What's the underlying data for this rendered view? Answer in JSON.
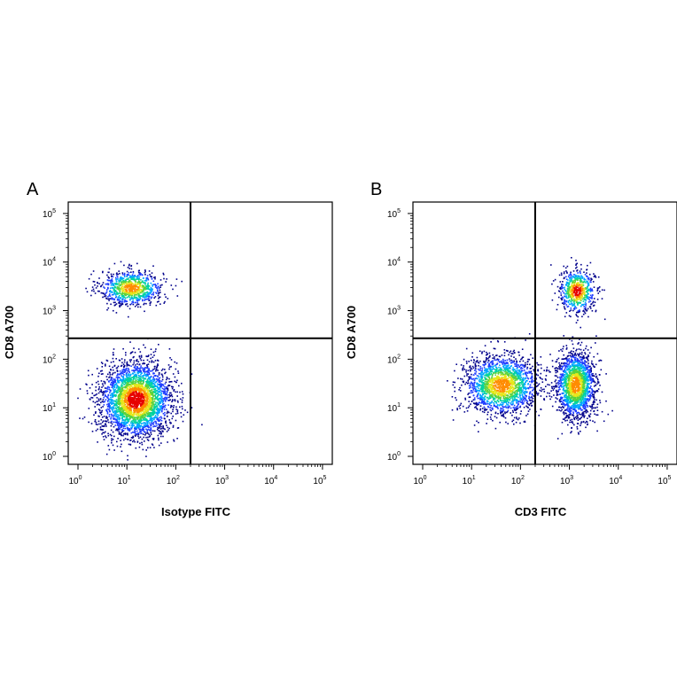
{
  "chart_data": [
    {
      "type": "scatter",
      "panel_label": "A",
      "xlabel": "Isotype FITC",
      "ylabel": "CD8 A700",
      "x_scale": "log",
      "y_scale": "log",
      "xlim": [
        1,
        100000
      ],
      "ylim": [
        1,
        100000
      ],
      "tick_labels": [
        "10^0",
        "10^1",
        "10^2",
        "10^3",
        "10^4",
        "10^5"
      ],
      "quadrant_gate": {
        "x": 200,
        "y": 270
      },
      "populations": [
        {
          "center_x": 12,
          "center_y": 3000,
          "approx_events": 900,
          "density": "high"
        },
        {
          "center_x": 15,
          "center_y": 15,
          "approx_events": 3200,
          "density": "highest"
        }
      ]
    },
    {
      "type": "scatter",
      "panel_label": "B",
      "xlabel": "CD3 FITC",
      "ylabel": "CD8 A700",
      "x_scale": "log",
      "y_scale": "log",
      "xlim": [
        1,
        100000
      ],
      "ylim": [
        1,
        100000
      ],
      "tick_labels": [
        "10^0",
        "10^1",
        "10^2",
        "10^3",
        "10^4",
        "10^5"
      ],
      "quadrant_gate": {
        "x": 200,
        "y": 270
      },
      "populations": [
        {
          "center_x": 1400,
          "center_y": 2600,
          "approx_events": 650,
          "density": "highest"
        },
        {
          "center_x": 40,
          "center_y": 30,
          "approx_events": 1900,
          "density": "high"
        },
        {
          "center_x": 1300,
          "center_y": 30,
          "approx_events": 1800,
          "density": "high"
        }
      ]
    }
  ],
  "colors": {
    "axis": "#000000",
    "gate": "#000000",
    "density_scale": [
      "#00008b",
      "#1e3cff",
      "#00a6ff",
      "#00d2a0",
      "#5ad23c",
      "#e6e619",
      "#ff8c00",
      "#e60000"
    ]
  }
}
